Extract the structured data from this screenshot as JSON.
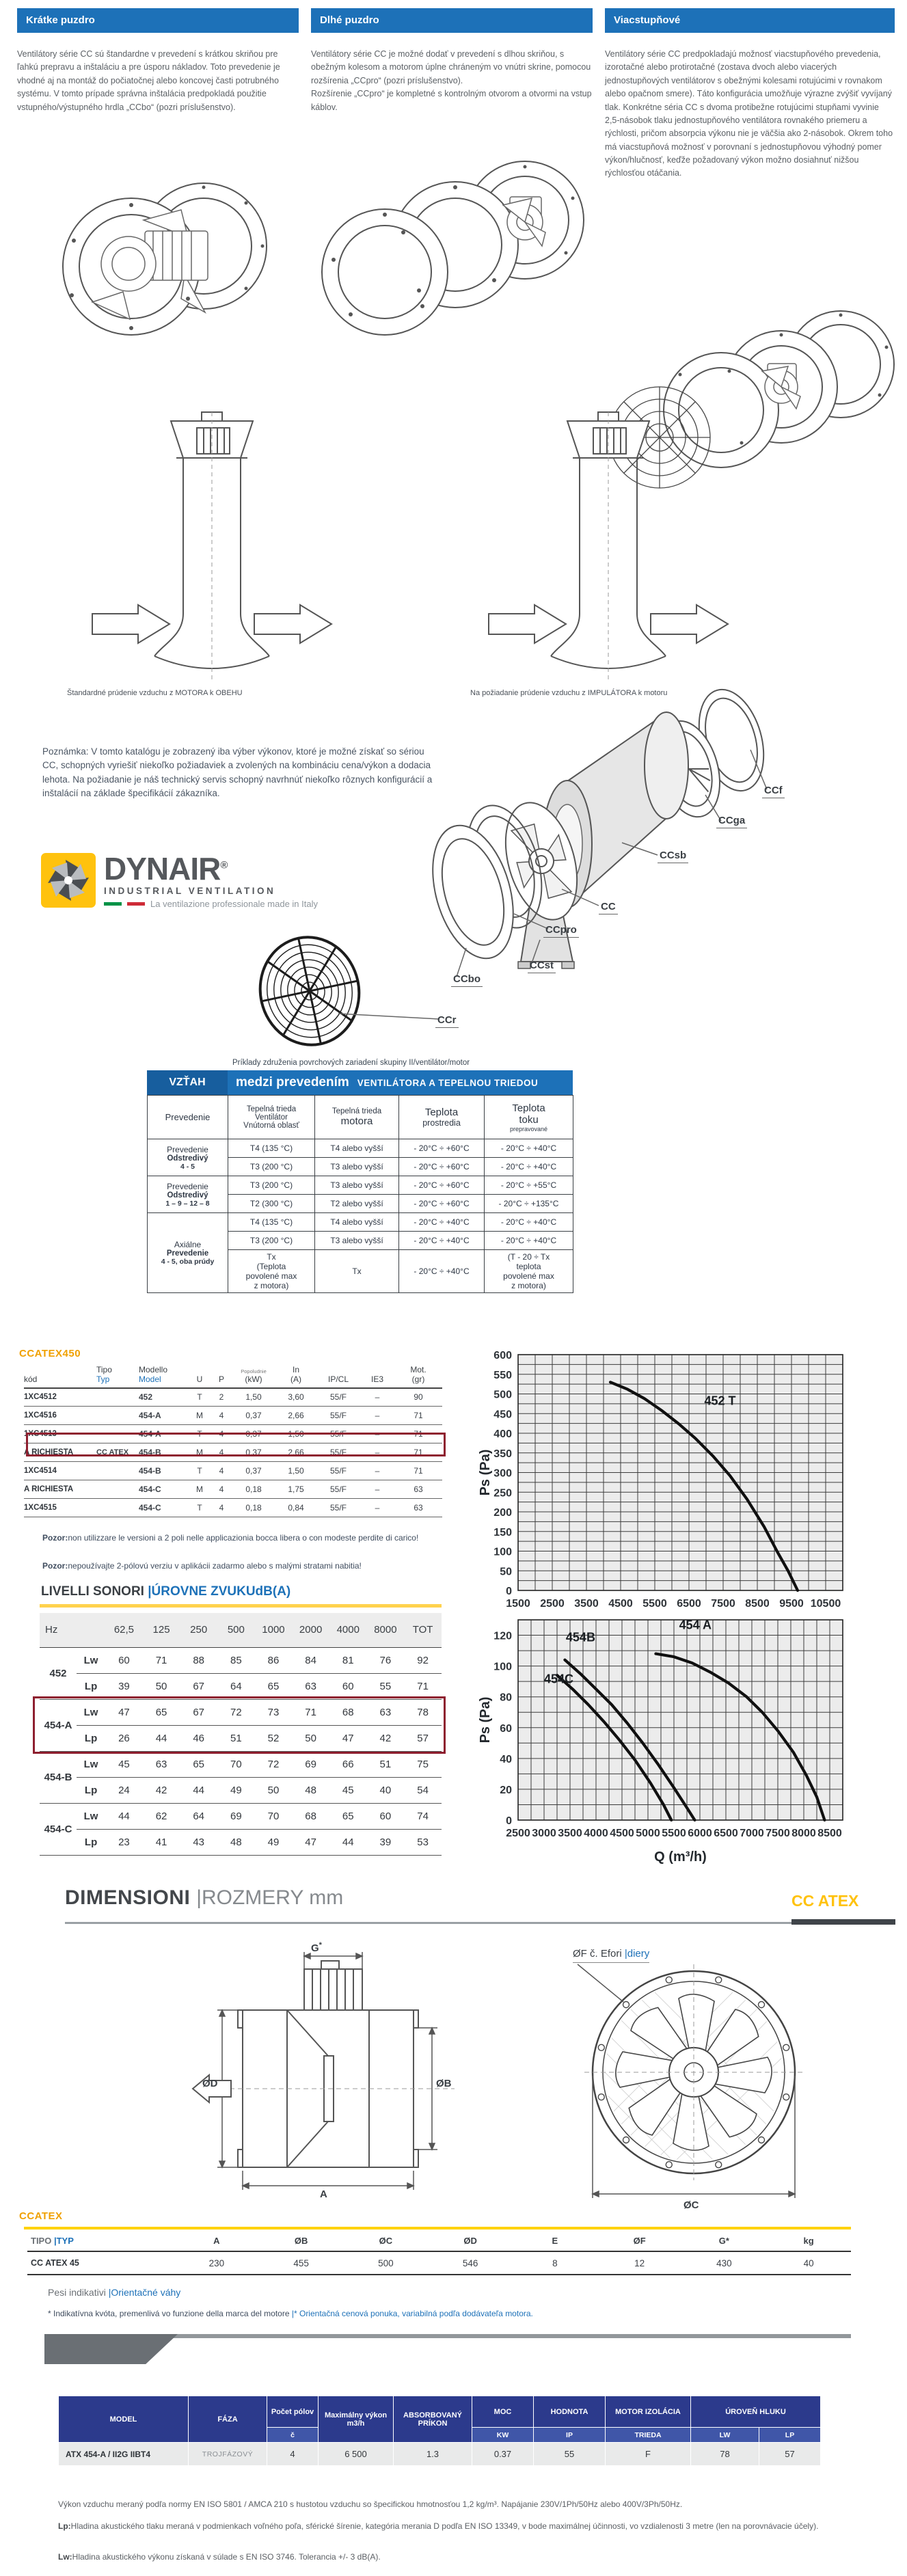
{
  "columns": [
    {
      "title": "Krátke puzdro",
      "text": "Ventilátory série CC sú štandardne v prevedení s krátkou skriňou pre ľahkú prepravu a inštaláciu a pre úsporu nákladov. Toto prevedenie je vhodné aj na montáž do počiatočnej alebo koncovej časti potrubného systému. V tomto prípade správna inštalácia predpokladá použitie vstupného/výstupného hrdla „CCbo“ (pozri príslušenstvo)."
    },
    {
      "title": "Dlhé puzdro",
      "text": "Ventilátory série CC je možné dodať v prevedení s dlhou skriňou, s obežným kolesom a motorom úplne chráneným vo vnútri skrine, pomocou rozšírenia „CCpro“ (pozri príslušenstvo).\nRozšírenie „CCpro“ je kompletné s kontrolným otvorom a otvormi na vstup káblov."
    },
    {
      "title": "Viacstupňové",
      "text": "Ventilátory série CC predpokladajú možnosť viacstupňového prevedenia, izorotačné alebo protirotačné (zostava dvoch alebo viacerých jednostupňových ventilátorov s obežnými kolesami rotujúcimi v rovnakom alebo opačnom smere). Táto konfigurácia umožňuje výrazne zvýšiť vyvíjaný tlak. Konkrétne séria CC s dvoma protibežne rotujúcimi stupňami vyvinie 2,5-násobok tlaku jednostupňového ventilátora rovnakého priemeru a rýchlosti, pričom absorpcia výkonu nie je väčšia ako 2-násobok. Okrem toho má viacstupňová možnosť v porovnaní s jednostupňovou výhodný pomer výkon/hlučnosť, keďže požadovaný výkon možno dosiahnuť nižšou rýchlosťou otáčania."
    }
  ],
  "captions": {
    "left": "Štandardné prúdenie vzduchu z MOTORA k OBEHU",
    "right": "Na požiadanie prúdenie vzduchu z IMPULÁTORA k motoru"
  },
  "note": "Poznámka: V tomto katalógu je zobrazený iba výber výkonov, ktoré je možné získať so sériou CC, schopných vyriešiť niekoľko požiadaviek a zvolených na kombináciu cena/výkon a dodacia lehota. Na požiadanie je náš technický servis schopný navrhnúť niekoľko rôznych konfigurácií a inštalácií na základe špecifikácií zákazníka.",
  "logo": {
    "brand": "DYNAIR",
    "reg": "®",
    "line1": "INDUSTRIAL VENTILATION",
    "line2": "La ventilazione professionale made in Italy"
  },
  "exploded_labels": [
    "CCf",
    "CCga",
    "CCsb",
    "CC",
    "CCpro",
    "CCst",
    "CCbo",
    "CCr"
  ],
  "relation": {
    "caption": "Príklady združenia povrchových zariadení skupiny II/ventilátor/motor",
    "title_left": "VZŤAH",
    "title_mid": "medzi prevedením",
    "title_right": "VENTILÁTORA A TEPELNOU TRIEDOU",
    "headers": {
      "c1": "Prevedenie",
      "c2a": "Tepelná trieda",
      "c2b": "Ventilátor",
      "c2c": "Vnútorná oblasť",
      "c3a": "Tepelná trieda",
      "c3b": "motora",
      "c4a": "Teplota",
      "c4b": "prostredia",
      "c5a": "Teplota",
      "c5b": "toku",
      "c5c": "prepravované"
    },
    "groups": [
      {
        "label": "Prevedenie",
        "sub1": "Odstredivý",
        "sub2": "4 - 5",
        "rows": [
          [
            "T4 (135 °C)",
            "T4 alebo vyšší",
            "- 20°C ÷ +60°C",
            "- 20°C ÷ +40°C"
          ],
          [
            "T3 (200 °C)",
            "T3 alebo vyšší",
            "- 20°C ÷ +60°C",
            "- 20°C ÷ +40°C"
          ]
        ]
      },
      {
        "label": "Prevedenie",
        "sub1": "Odstredivý",
        "sub2": "1 – 9 – 12 – 8",
        "rows": [
          [
            "T3 (200 °C)",
            "T3 alebo vyšší",
            "- 20°C ÷ +60°C",
            "- 20°C ÷ +55°C"
          ],
          [
            "T2 (300 °C)",
            "T2 alebo vyšší",
            "- 20°C ÷ +60°C",
            "- 20°C ÷ +135°C"
          ]
        ]
      },
      {
        "label": "Axiálne",
        "sub1": "Prevedenie",
        "sub2": "4 - 5, oba prúdy",
        "rows": [
          [
            "T4 (135 °C)",
            "T4 alebo vyšší",
            "- 20°C ÷ +40°C",
            "- 20°C ÷ +40°C"
          ],
          [
            "T3 (200 °C)",
            "T3 alebo vyšší",
            "- 20°C ÷ +40°C",
            "- 20°C ÷ +40°C"
          ],
          [
            "Tx\n(Teplota\npovolené max\nz motora)",
            "Tx",
            "- 20°C ÷ +40°C",
            "(T - 20 ÷ Tx\nteplota\npovolené max\nz motora)"
          ]
        ]
      }
    ]
  },
  "ccatex450": {
    "title": "CCATEX450",
    "headers": [
      {
        "lines": [
          "kód"
        ]
      },
      {
        "lines": [
          "Tipo",
          "Typ"
        ],
        "blue": [
          0,
          1
        ]
      },
      {
        "lines": [
          "Modello",
          "Model"
        ],
        "blue": [
          0,
          1
        ]
      },
      {
        "lines": [
          "U"
        ]
      },
      {
        "lines": [
          "P"
        ]
      },
      {
        "lines": [
          "Popoludnie",
          "(kW)"
        ],
        "small": [
          1,
          0
        ]
      },
      {
        "lines": [
          "In",
          "(A)"
        ]
      },
      {
        "lines": [
          "IP/CL"
        ]
      },
      {
        "lines": [
          "IE3"
        ]
      },
      {
        "lines": [
          "Mot.",
          "(gr)"
        ]
      }
    ],
    "rows": [
      [
        "1XC4512",
        "",
        "452",
        "T",
        "2",
        "1,50",
        "3,60",
        "55/F",
        "–",
        "90"
      ],
      [
        "1XC4516",
        "",
        "454-A",
        "M",
        "4",
        "0,37",
        "2,66",
        "55/F",
        "–",
        "71"
      ],
      [
        "1XC4513",
        "",
        "454-A",
        "T",
        "4",
        "0,37",
        "1,50",
        "55/F",
        "–",
        "71"
      ],
      [
        "A RICHIESTA",
        "CC ATEX",
        "454-B",
        "M",
        "4",
        "0,37",
        "2,66",
        "55/F",
        "–",
        "71"
      ],
      [
        "1XC4514",
        "",
        "454-B",
        "T",
        "4",
        "0,37",
        "1,50",
        "55/F",
        "–",
        "71"
      ],
      [
        "A RICHIESTA",
        "",
        "454-C",
        "M",
        "4",
        "0,18",
        "1,75",
        "55/F",
        "–",
        "63"
      ],
      [
        "1XC4515",
        "",
        "454-C",
        "T",
        "4",
        "0,18",
        "0,84",
        "55/F",
        "–",
        "63"
      ]
    ],
    "highlight_row": 2,
    "note_it": "Pozor:non utilizzare le versioni a 2 poli nelle applicazionia bocca libera o con modeste perdite di carico!",
    "note_sk": "Pozor:nepoužívajte 2-pólovú verziu v aplikácii zadarmo alebo s malými stratami nabitia!"
  },
  "sound": {
    "title_a": "LIVELLI SONORI ",
    "title_b": "|ÚROVNE ZVUKUdB(A)",
    "col_header": "Hz",
    "freqs": [
      "62,5",
      "125",
      "250",
      "500",
      "1000",
      "2000",
      "4000",
      "8000",
      "TOT"
    ],
    "row_labels": {
      "lw": "Lw",
      "lp": "Lp"
    },
    "models": [
      {
        "name": "452",
        "lw": [
          60,
          71,
          88,
          85,
          86,
          84,
          81,
          76,
          92
        ],
        "lp": [
          39,
          50,
          67,
          64,
          65,
          63,
          60,
          55,
          71
        ],
        "highlight": false
      },
      {
        "name": "454-A",
        "lw": [
          47,
          65,
          67,
          72,
          73,
          71,
          68,
          63,
          78
        ],
        "lp": [
          26,
          44,
          46,
          51,
          52,
          50,
          47,
          42,
          57
        ],
        "highlight": true
      },
      {
        "name": "454-B",
        "lw": [
          45,
          63,
          65,
          70,
          72,
          69,
          66,
          51,
          75
        ],
        "lp": [
          24,
          42,
          44,
          49,
          50,
          48,
          45,
          40,
          54
        ],
        "highlight": false
      },
      {
        "name": "454-C",
        "lw": [
          44,
          62,
          64,
          69,
          70,
          68,
          65,
          60,
          74
        ],
        "lp": [
          23,
          41,
          43,
          48,
          49,
          47,
          44,
          39,
          53
        ],
        "highlight": false
      }
    ]
  },
  "chart_data": [
    {
      "type": "line",
      "xlabel": "Q (m³/h)",
      "ylabel": "Ps (Pa)",
      "xlim": [
        1500,
        11000
      ],
      "ylim": [
        0,
        600
      ],
      "x_tick_step": 1000,
      "x_grid_step": 500,
      "x_tick_max": 10500,
      "y_tick_step": 50,
      "y_grid_step": 25,
      "y_tick_max": 600,
      "grid": true,
      "plot_bg": "#ececec",
      "series": [
        {
          "name": "452 T",
          "points": [
            [
              4200,
              530
            ],
            [
              4700,
              512
            ],
            [
              5200,
              488
            ],
            [
              5700,
              458
            ],
            [
              6200,
              424
            ],
            [
              6700,
              386
            ],
            [
              7200,
              342
            ],
            [
              7700,
              292
            ],
            [
              8200,
              232
            ],
            [
              8700,
              162
            ],
            [
              9100,
              96
            ],
            [
              9400,
              50
            ],
            [
              9680,
              0
            ]
          ]
        }
      ],
      "annotations": [
        {
          "text": "452 T",
          "x": 6950,
          "y": 472
        }
      ]
    },
    {
      "type": "line",
      "xlabel": "Q (m³/h)",
      "ylabel": "Ps (Pa)",
      "xlim": [
        2500,
        8750
      ],
      "ylim": [
        0,
        130
      ],
      "x_tick_step": 500,
      "x_grid_step": 250,
      "x_tick_max": 8500,
      "y_tick_step": 20,
      "y_grid_step": 10,
      "y_tick_max": 120,
      "grid": true,
      "plot_bg": "#ececec",
      "series": [
        {
          "name": "454 A",
          "points": [
            [
              5150,
              108
            ],
            [
              5500,
              106
            ],
            [
              5850,
              102
            ],
            [
              6200,
              96
            ],
            [
              6550,
              89
            ],
            [
              6900,
              80
            ],
            [
              7200,
              70
            ],
            [
              7500,
              58
            ],
            [
              7800,
              44
            ],
            [
              8050,
              29
            ],
            [
              8250,
              15
            ],
            [
              8400,
              0
            ]
          ]
        },
        {
          "name": "454B",
          "points": [
            [
              3400,
              104
            ],
            [
              3700,
              95
            ],
            [
              4000,
              85
            ],
            [
              4300,
              75
            ],
            [
              4600,
              63
            ],
            [
              4900,
              50
            ],
            [
              5200,
              36
            ],
            [
              5500,
              21
            ],
            [
              5750,
              8
            ],
            [
              5900,
              0
            ]
          ]
        },
        {
          "name": "454C",
          "points": [
            [
              3250,
              94
            ],
            [
              3550,
              85
            ],
            [
              3850,
              75
            ],
            [
              4150,
              64
            ],
            [
              4450,
              52
            ],
            [
              4750,
              39
            ],
            [
              5050,
              24
            ],
            [
              5300,
              10
            ],
            [
              5450,
              0
            ]
          ]
        }
      ],
      "annotations": [
        {
          "text": "454 A",
          "x": 5600,
          "y": 124
        },
        {
          "text": "454B",
          "x": 3420,
          "y": 116
        },
        {
          "text": "454C",
          "x": 3000,
          "y": 89
        }
      ]
    }
  ],
  "dimensions": {
    "title_a": "DIMENSIONI ",
    "title_b": "|ROZMERY mm",
    "badge": "CC ATEX",
    "labels": {
      "g": "G",
      "g_star": "*",
      "od": "ØD",
      "ob": "ØB",
      "a": "A",
      "oc": "ØC",
      "of_a": "ØF č. Efori ",
      "of_b": "|diery"
    }
  },
  "dim_table": {
    "title": "CCATEX",
    "header_first_a": "TIPO ",
    "header_first_b": "|TYP",
    "headers": [
      "A",
      "ØB",
      "ØC",
      "ØD",
      "E",
      "ØF",
      "G*",
      "kg"
    ],
    "row_label": "CC ATEX 45",
    "row_values": [
      "230",
      "455",
      "500",
      "546",
      "8",
      "12",
      "430",
      "40"
    ],
    "note_a": "Pesi indikativi ",
    "note_b": "|Orientačné váhy",
    "note2_a": "* Indikatívna kvóta, premenlivá vo funzione della marca del motore ",
    "note2_b": "|* Orientačná cenová ponuka, variabilná podľa dodávateľa motora."
  },
  "bottom_table": {
    "col1": "MODEL",
    "col2": "FÁZA",
    "cols": [
      {
        "h": "Počet pólov",
        "u": "č"
      },
      {
        "h": "Maximálny výkon m3/h"
      },
      {
        "h": "ABSORBOVANÝ PRÍKON"
      },
      {
        "h": "MOC",
        "u": "KW"
      },
      {
        "h": "HODNOTA",
        "u": "IP"
      },
      {
        "h": "MOTOR IZOLÁCIA",
        "u": "TRIEDA"
      },
      {
        "h": "ÚROVEŇ HLUKU",
        "u": "LW",
        "u2": "LP"
      }
    ],
    "row": [
      "ATX 454-A / II2G IIBT4",
      "TROJFÁZOVÝ",
      "4",
      "6 500",
      "1.3",
      "0.37",
      "55",
      "F",
      "78",
      "57"
    ]
  },
  "footnotes": [
    {
      "b": "",
      "t": "Výkon vzduchu meraný podľa normy EN ISO 5801 / AMCA 210 s hustotou vzduchu so špecifickou hmotnosťou 1,2 kg/m³. Napájanie 230V/1Ph/50Hz alebo 400V/3Ph/50Hz."
    },
    {
      "b": "Lp:",
      "t": "Hladina akustického tlaku meraná v podmienkach voľného poľa, sférické šírenie, kategória merania D podľa EN ISO 13349, v bode maximálnej účinnosti, vo vzdialenosti 3 metre (len na porovnávacie účely)."
    },
    {
      "b": "Lw:",
      "t": "Hladina akustického výkonu získaná v súlade s EN ISO 3746. Tolerancia +/- 3 dB(A)."
    }
  ]
}
